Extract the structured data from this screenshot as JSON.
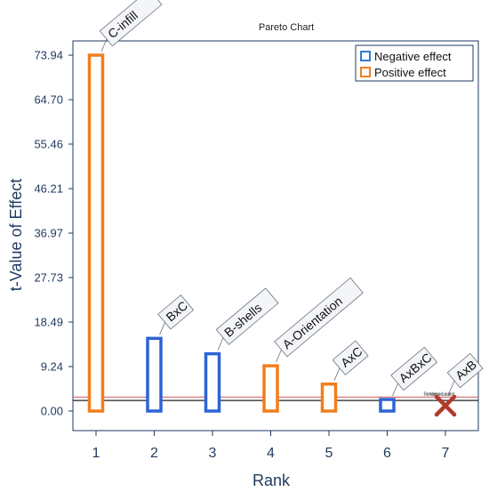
{
  "chart_data": {
    "type": "bar",
    "title": "Pareto Chart",
    "xlabel": "Rank",
    "ylabel": "t-Value of Effect",
    "categories": [
      "1",
      "2",
      "3",
      "4",
      "5",
      "6",
      "7"
    ],
    "yticks": [
      "73.94",
      "64.70",
      "55.46",
      "46.21",
      "36.97",
      "27.73",
      "18.49",
      "9.24",
      "0.00"
    ],
    "ylim": [
      0,
      73.94
    ],
    "grid": false,
    "legend_position": "top-right",
    "bars": [
      {
        "rank": "1",
        "label": "C-infill",
        "value": 73.94,
        "effect": "positive"
      },
      {
        "rank": "2",
        "label": "BxC",
        "value": 15.1,
        "effect": "negative"
      },
      {
        "rank": "3",
        "label": "B-shells",
        "value": 11.9,
        "effect": "negative"
      },
      {
        "rank": "4",
        "label": "A-Orientation",
        "value": 9.4,
        "effect": "positive"
      },
      {
        "rank": "5",
        "label": "AxC",
        "value": 5.6,
        "effect": "positive"
      },
      {
        "rank": "6",
        "label": "AxBxC",
        "value": 2.4,
        "effect": "negative"
      },
      {
        "rank": "7",
        "label": "AxB",
        "value": 0.7,
        "effect": "excluded"
      }
    ],
    "limits": [
      {
        "name": "Bonferroni Limit",
        "value": 2.9,
        "color": "#d06a6a"
      },
      {
        "name": "t-Value Limit",
        "value": 2.2,
        "color": "#222222"
      }
    ],
    "legend": [
      {
        "label": "Negative effect",
        "color": "#2d7fd3"
      },
      {
        "label": "Positive effect",
        "color": "#f07f1c"
      }
    ],
    "colors": {
      "positive": "#f07f1c",
      "negative": "#2d63d6",
      "excluded": "#b13a2a",
      "axis": "#1f3a5f"
    }
  }
}
